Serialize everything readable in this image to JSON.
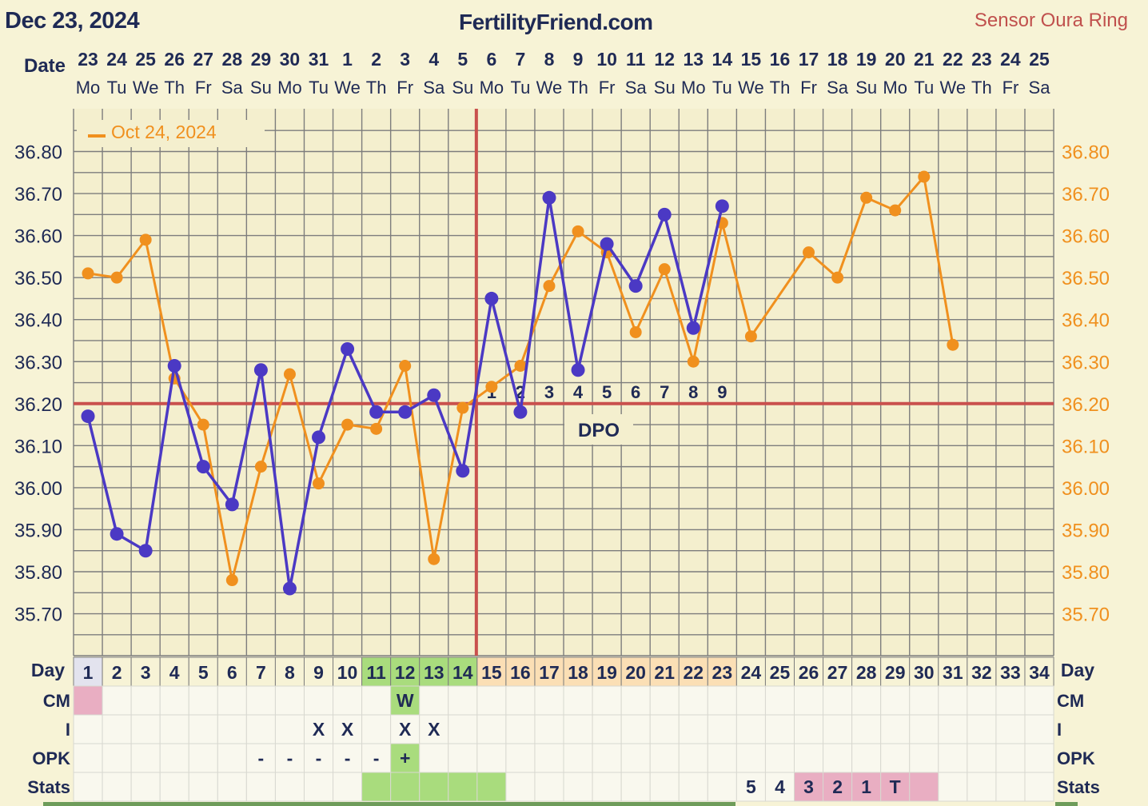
{
  "header": {
    "date": "Dec 23, 2024",
    "site": "FertilityFriend.com",
    "sensor": "Sensor Oura Ring"
  },
  "labels": {
    "date_row": "Date",
    "day_row": "Day",
    "dpo": "DPO"
  },
  "colors": {
    "current_series": "#4b39c4",
    "compare_series": "#f0901e",
    "coverline": "#c9504d",
    "grid": "#7d7d7d",
    "fertile_cell": "#a9dc7d",
    "luteal_cell": "#fbdfb5",
    "stats_pink": "#e9aec2",
    "first_cell": "#e3e3ee"
  },
  "dates": [
    "23",
    "24",
    "25",
    "26",
    "27",
    "28",
    "29",
    "30",
    "31",
    "1",
    "2",
    "3",
    "4",
    "5",
    "6",
    "7",
    "8",
    "9",
    "10",
    "11",
    "12",
    "13",
    "14",
    "15",
    "16",
    "17",
    "18",
    "19",
    "20",
    "21",
    "22",
    "23",
    "24",
    "25"
  ],
  "weekdays": [
    "Mo",
    "Tu",
    "We",
    "Th",
    "Fr",
    "Sa",
    "Su",
    "Mo",
    "Tu",
    "We",
    "Th",
    "Fr",
    "Sa",
    "Su",
    "Mo",
    "Tu",
    "We",
    "Th",
    "Fr",
    "Sa",
    "Su",
    "Mo",
    "Tu",
    "We",
    "Th",
    "Fr",
    "Sa",
    "Su",
    "Mo",
    "Tu",
    "We",
    "Th",
    "Fr",
    "Sa"
  ],
  "chart_data": {
    "type": "line",
    "ylim": [
      35.6,
      36.86
    ],
    "yticks": [
      "36.80",
      "36.70",
      "36.60",
      "36.50",
      "36.40",
      "36.30",
      "36.20",
      "36.10",
      "36.00",
      "35.90",
      "35.80",
      "35.70"
    ],
    "x": [
      1,
      2,
      3,
      4,
      5,
      6,
      7,
      8,
      9,
      10,
      11,
      12,
      13,
      14,
      15,
      16,
      17,
      18,
      19,
      20,
      21,
      22,
      23,
      24,
      25,
      26,
      27,
      28,
      29,
      30,
      31,
      32,
      33,
      34
    ],
    "series": [
      {
        "name": "",
        "color": "#4b39c4",
        "values": [
          36.17,
          35.89,
          35.85,
          36.29,
          36.05,
          35.96,
          36.28,
          35.76,
          36.12,
          36.33,
          36.18,
          36.18,
          36.22,
          36.04,
          36.45,
          36.18,
          36.69,
          36.28,
          36.58,
          36.48,
          36.65,
          36.38,
          36.67,
          null,
          null,
          null,
          null,
          null,
          null,
          null,
          null,
          null,
          null,
          null
        ]
      },
      {
        "name": "Oct 24, 2024",
        "color": "#f0901e",
        "values": [
          36.51,
          36.5,
          36.59,
          36.26,
          36.15,
          35.78,
          36.05,
          36.27,
          36.01,
          36.15,
          36.14,
          36.29,
          35.83,
          36.19,
          36.24,
          36.29,
          36.48,
          36.61,
          36.56,
          36.37,
          36.52,
          36.3,
          36.63,
          36.36,
          null,
          36.56,
          36.5,
          36.69,
          36.66,
          36.74,
          36.34,
          null,
          null,
          null
        ]
      }
    ],
    "coverline": 36.2,
    "ovulation_day": 14,
    "dpo_labels": [
      "1",
      "2",
      "3",
      "4",
      "5",
      "6",
      "7",
      "8",
      "9"
    ],
    "dpo_start_day": 15,
    "legend": "top-left",
    "grid": true
  },
  "day_numbers": [
    "1",
    "2",
    "3",
    "4",
    "5",
    "6",
    "7",
    "8",
    "9",
    "10",
    "11",
    "12",
    "13",
    "14",
    "15",
    "16",
    "17",
    "18",
    "19",
    "20",
    "21",
    "22",
    "23",
    "24",
    "25",
    "26",
    "27",
    "28",
    "29",
    "30",
    "31",
    "32",
    "33",
    "34"
  ],
  "rows": [
    {
      "label": "CM",
      "cells": {
        "1": "",
        "12": "W"
      },
      "bg": {
        "1": "pink",
        "12": "green"
      }
    },
    {
      "label": "I",
      "cells": {
        "9": "X",
        "10": "X",
        "12": "X",
        "13": "X"
      },
      "bg": {}
    },
    {
      "label": "OPK",
      "cells": {
        "7": "-",
        "8": "-",
        "9": "-",
        "10": "-",
        "11": "-",
        "12": "+"
      },
      "bg": {
        "12": "green"
      }
    },
    {
      "label": "Stats",
      "cells": {
        "24": "5",
        "25": "4",
        "26": "3",
        "27": "2",
        "28": "1",
        "29": "T"
      },
      "bg": {
        "11": "green",
        "12": "green",
        "13": "green",
        "14": "green",
        "15": "green",
        "26": "pink",
        "27": "pink",
        "28": "pink",
        "29": "pink",
        "30": "pink"
      }
    }
  ]
}
